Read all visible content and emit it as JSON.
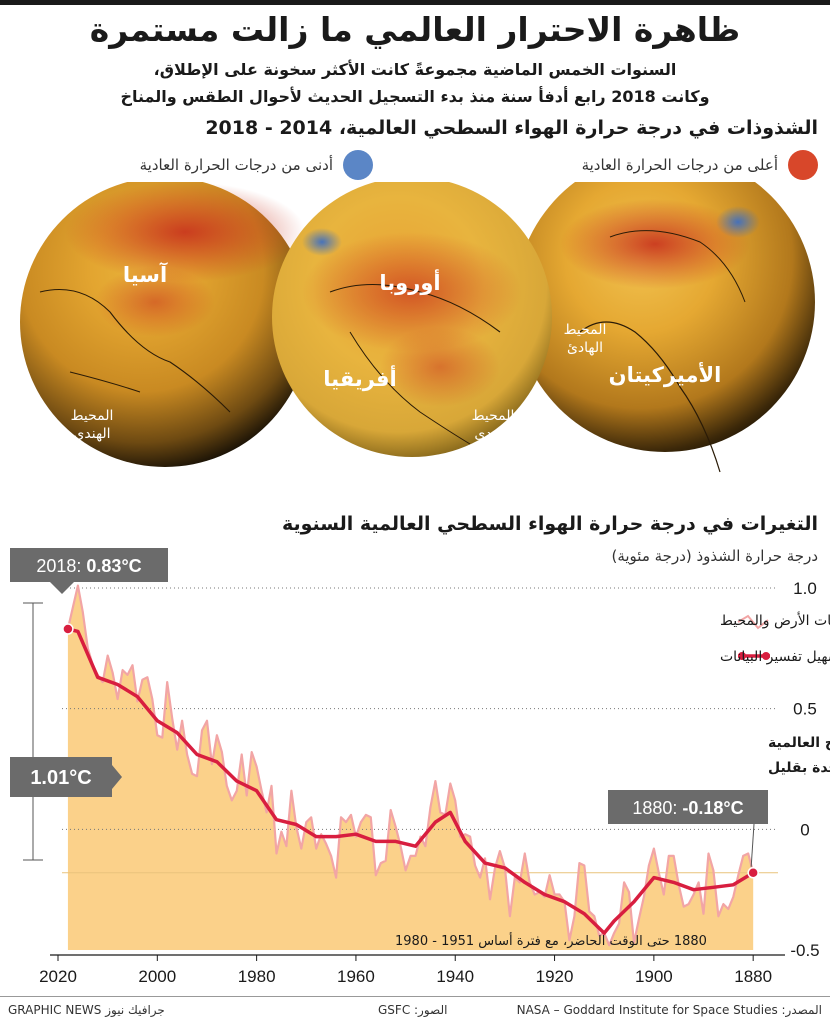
{
  "title": "ظاهرة الاحترار العالمي ما زالت مستمرة",
  "subtitle_line1": "السنوات الخمس الماضية مجموعةً كانت الأكثر سخونة على الإطلاق،",
  "subtitle_line2": "وكانت 2018 رابع أدفأ سنة منذ بدء التسجيل الحديث لأحوال الطقس والمناخ",
  "section1_title": "الشذوذات في درجة حرارة الهواء السطحي العالمية، 2014 - 2018",
  "map_legend": {
    "warm_label": "أعلى من درجات الحرارة العادية",
    "cool_label": "أدنى من درجات الحرارة العادية",
    "warm_color": "#d8472a",
    "cool_color": "#5b86c6"
  },
  "globe_labels": {
    "asia": "آسيا",
    "indian_ocean_1": "المحيط الهندي",
    "europe": "أوروبا",
    "africa": "أفريقيا",
    "indian_ocean_2": "المحيط الهندي",
    "pacific_ocean": "المحيط الهادئ",
    "americas": "الأميركيتان"
  },
  "section2_title": "التغيرات في درجة حرارة الهواء السطحي العالمية السنوية",
  "chart_data": {
    "type": "line",
    "ylabel": "درجة حرارة الشذوذ (درجة مئوية)",
    "x_ticks": [
      "2020",
      "2000",
      "1980",
      "1960",
      "1940",
      "1920",
      "1900",
      "1880"
    ],
    "y_ticks": [
      "1.0",
      "0.5",
      "0",
      "-0.5"
    ],
    "x_reversed": true,
    "ylim": [
      -0.5,
      1.0
    ],
    "xlim": [
      1875,
      2020
    ],
    "legend": {
      "annual": "المتوسط السنوي العالمي، استناداً إلى بيانات الأرض والمحيط",
      "smoothed": "خط التمهيد لتسهيل تفسير البيانات"
    },
    "annotations": {
      "start_label": "2018: ",
      "start_value": "0.83°C",
      "end_label": "1880: ",
      "end_value": "-0.18°C",
      "range_value": "1.01°C",
      "note_line1": "منذ الثمانينات، متوسط حرارة السطح العالمية",
      "note_line2": "ارتفعت فوق درجة مئوية واحدة بقليل",
      "baseline_note": "1880 حتى الوقت الحاضر، مع فترة أساس 1951 - 1980"
    },
    "colors": {
      "annual": "#f2a5a5",
      "smoothed": "#d81e3f",
      "fill": "#fbd18a",
      "label_box": "#6b6b6b"
    },
    "series": [
      {
        "name": "المتوسط السنوي العالمي، استناداً إلى بيانات الأرض والمحيط",
        "x": [
          1880,
          1881,
          1882,
          1883,
          1884,
          1885,
          1886,
          1887,
          1888,
          1889,
          1890,
          1891,
          1892,
          1893,
          1894,
          1895,
          1896,
          1897,
          1898,
          1899,
          1900,
          1901,
          1902,
          1903,
          1904,
          1905,
          1906,
          1907,
          1908,
          1909,
          1910,
          1911,
          1912,
          1913,
          1914,
          1915,
          1916,
          1917,
          1918,
          1919,
          1920,
          1921,
          1922,
          1923,
          1924,
          1925,
          1926,
          1927,
          1928,
          1929,
          1930,
          1931,
          1932,
          1933,
          1934,
          1935,
          1936,
          1937,
          1938,
          1939,
          1940,
          1941,
          1942,
          1943,
          1944,
          1945,
          1946,
          1947,
          1948,
          1949,
          1950,
          1951,
          1952,
          1953,
          1954,
          1955,
          1956,
          1957,
          1958,
          1959,
          1960,
          1961,
          1962,
          1963,
          1964,
          1965,
          1966,
          1967,
          1968,
          1969,
          1970,
          1971,
          1972,
          1973,
          1974,
          1975,
          1976,
          1977,
          1978,
          1979,
          1980,
          1981,
          1982,
          1983,
          1984,
          1985,
          1986,
          1987,
          1988,
          1989,
          1990,
          1991,
          1992,
          1993,
          1994,
          1995,
          1996,
          1997,
          1998,
          1999,
          2000,
          2001,
          2002,
          2003,
          2004,
          2005,
          2006,
          2007,
          2008,
          2009,
          2010,
          2011,
          2012,
          2013,
          2014,
          2015,
          2016,
          2017,
          2018
        ],
        "values": [
          -0.18,
          -0.1,
          -0.11,
          -0.19,
          -0.28,
          -0.33,
          -0.31,
          -0.36,
          -0.17,
          -0.1,
          -0.35,
          -0.22,
          -0.27,
          -0.31,
          -0.32,
          -0.23,
          -0.11,
          -0.11,
          -0.27,
          -0.18,
          -0.08,
          -0.15,
          -0.28,
          -0.37,
          -0.47,
          -0.26,
          -0.22,
          -0.39,
          -0.43,
          -0.48,
          -0.43,
          -0.44,
          -0.36,
          -0.34,
          -0.15,
          -0.14,
          -0.36,
          -0.46,
          -0.3,
          -0.27,
          -0.27,
          -0.19,
          -0.28,
          -0.26,
          -0.27,
          -0.22,
          -0.1,
          -0.22,
          -0.2,
          -0.36,
          -0.16,
          -0.09,
          -0.16,
          -0.29,
          -0.12,
          -0.2,
          -0.15,
          -0.03,
          -0.02,
          -0.03,
          0.12,
          0.19,
          0.06,
          0.07,
          0.2,
          0.09,
          -0.07,
          -0.03,
          -0.11,
          -0.11,
          -0.17,
          -0.07,
          0.01,
          0.08,
          -0.13,
          -0.14,
          -0.19,
          0.05,
          0.06,
          0.03,
          -0.03,
          0.06,
          0.03,
          0.05,
          -0.2,
          -0.11,
          -0.06,
          -0.02,
          -0.08,
          0.05,
          0.03,
          -0.08,
          0.01,
          0.16,
          -0.07,
          -0.01,
          -0.1,
          0.18,
          0.07,
          0.16,
          0.26,
          0.32,
          0.14,
          0.31,
          0.16,
          0.12,
          0.18,
          0.32,
          0.39,
          0.27,
          0.45,
          0.41,
          0.22,
          0.23,
          0.31,
          0.45,
          0.33,
          0.46,
          0.61,
          0.38,
          0.39,
          0.54,
          0.63,
          0.62,
          0.53,
          0.68,
          0.64,
          0.66,
          0.54,
          0.65,
          0.72,
          0.61,
          0.64,
          0.68,
          0.75,
          0.9,
          1.01,
          0.92,
          0.83
        ]
      },
      {
        "name": "خط التمهيد لتسهيل تفسير البيانات",
        "x": [
          1880,
          1884,
          1888,
          1892,
          1896,
          1900,
          1904,
          1908,
          1910,
          1914,
          1918,
          1922,
          1926,
          1930,
          1934,
          1938,
          1941,
          1944,
          1948,
          1952,
          1956,
          1960,
          1964,
          1968,
          1972,
          1976,
          1980,
          1984,
          1988,
          1992,
          1996,
          2000,
          2004,
          2008,
          2012,
          2016,
          2018
        ],
        "values": [
          -0.18,
          -0.23,
          -0.24,
          -0.25,
          -0.22,
          -0.2,
          -0.3,
          -0.38,
          -0.43,
          -0.35,
          -0.3,
          -0.27,
          -0.22,
          -0.16,
          -0.14,
          -0.05,
          0.07,
          0.03,
          -0.07,
          -0.05,
          -0.05,
          -0.02,
          -0.03,
          -0.03,
          0.02,
          0.04,
          0.16,
          0.2,
          0.28,
          0.31,
          0.4,
          0.45,
          0.55,
          0.6,
          0.63,
          0.82,
          0.83
        ]
      }
    ]
  },
  "footer": {
    "source": "المصدر: NASA – Goddard Institute for Space Studies",
    "photos": "الصور: GSFC",
    "credit": "GRAPHIC NEWS جرافيك نيوز"
  }
}
